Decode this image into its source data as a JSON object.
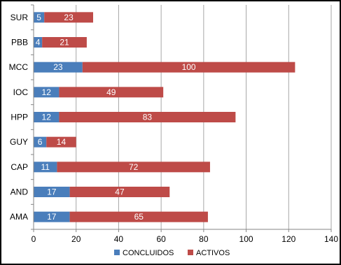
{
  "chart_data": {
    "type": "bar",
    "orientation": "horizontal",
    "stacked": true,
    "categories": [
      "SUR",
      "PBB",
      "MCC",
      "IOC",
      "HPP",
      "GUY",
      "CAP",
      "AND",
      "AMA"
    ],
    "series": [
      {
        "name": "CONCLUIDOS",
        "color": "#4a7ebb",
        "values": [
          5,
          4,
          23,
          12,
          12,
          6,
          11,
          17,
          17
        ]
      },
      {
        "name": "ACTIVOS",
        "color": "#be4b48",
        "values": [
          23,
          21,
          100,
          49,
          83,
          14,
          72,
          47,
          65
        ]
      }
    ],
    "xlim": [
      0,
      140
    ],
    "xticks": [
      0,
      20,
      40,
      60,
      80,
      100,
      120,
      140
    ],
    "grid": "vertical",
    "legend": "bottom",
    "title": "",
    "xlabel": "",
    "ylabel": ""
  }
}
